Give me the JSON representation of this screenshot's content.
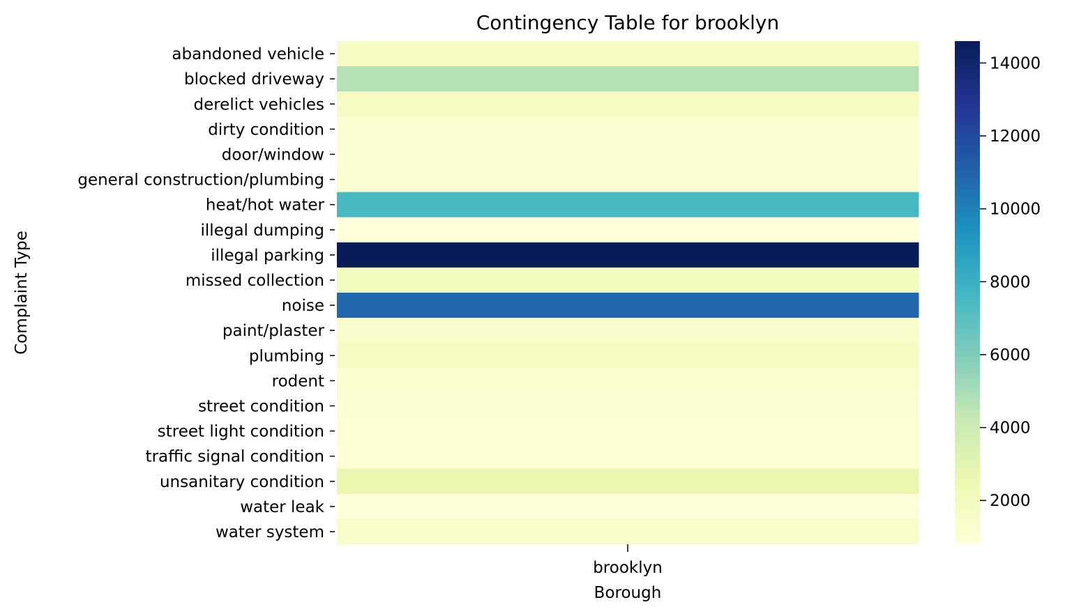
{
  "chart_data": {
    "type": "heatmap",
    "title": "Contingency Table for brooklyn",
    "xlabel": "Borough",
    "ylabel": "Complaint Type",
    "columns": [
      "brooklyn"
    ],
    "rows": [
      "abandoned vehicle",
      "blocked driveway",
      "derelict vehicles",
      "dirty condition",
      "door/window",
      "general construction/plumbing",
      "heat/hot water",
      "illegal dumping",
      "illegal parking",
      "missed collection",
      "noise",
      "paint/plaster",
      "plumbing",
      "rodent",
      "street condition",
      "street light condition",
      "traffic signal condition",
      "unsanitary condition",
      "water leak",
      "water system"
    ],
    "values": [
      [
        1750
      ],
      [
        4700
      ],
      [
        1800
      ],
      [
        1150
      ],
      [
        1100
      ],
      [
        1250
      ],
      [
        7500
      ],
      [
        800
      ],
      [
        14600
      ],
      [
        2000
      ],
      [
        10800
      ],
      [
        1400
      ],
      [
        1800
      ],
      [
        1300
      ],
      [
        1200
      ],
      [
        1050
      ],
      [
        1000
      ],
      [
        2600
      ],
      [
        850
      ],
      [
        1550
      ]
    ],
    "colorbar": {
      "colormap": "YlGnBu",
      "vmin": 800,
      "vmax": 14600,
      "ticks": [
        2000,
        4000,
        6000,
        8000,
        10000,
        12000,
        14000
      ]
    }
  }
}
